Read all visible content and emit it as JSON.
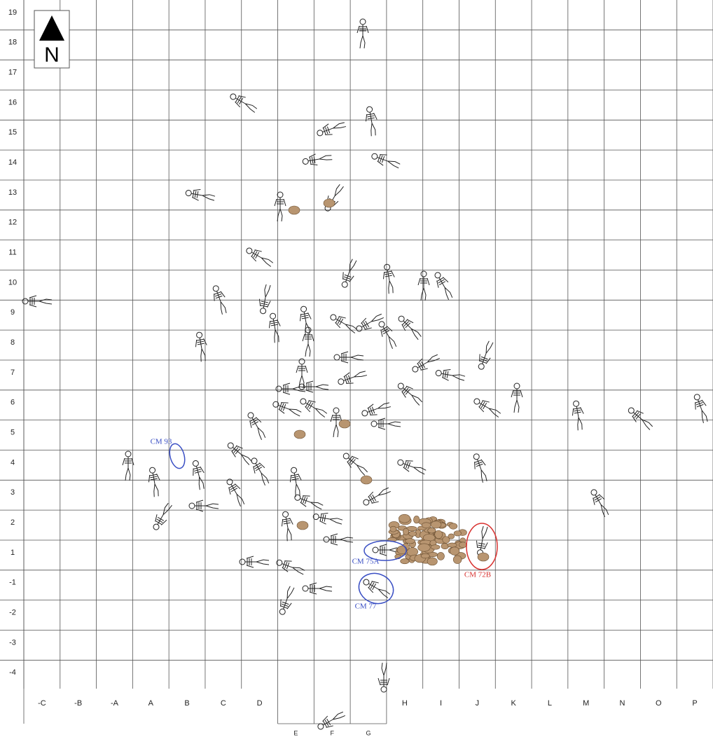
{
  "north": "N",
  "row_labels": [
    "19",
    "18",
    "17",
    "16",
    "15",
    "14",
    "13",
    "12",
    "11",
    "10",
    "9",
    "8",
    "7",
    "6",
    "5",
    "4",
    "3",
    "2",
    "1",
    "-1",
    "-2",
    "-3",
    "-4"
  ],
  "column_labels": [
    "-C",
    "-B",
    "-A",
    "A",
    "B",
    "C",
    "D",
    "",
    "",
    "",
    "H",
    "I",
    "J",
    "K",
    "L",
    "M",
    "N",
    "O",
    "P"
  ],
  "extension_labels": [
    "E",
    "F",
    "G"
  ],
  "annotations": [
    {
      "label": "CM 93",
      "color": "#3a4fc4"
    },
    {
      "label": "CM 75A",
      "color": "#3a4fc4"
    },
    {
      "label": "CM 77",
      "color": "#3a4fc4"
    },
    {
      "label": "CM 72B",
      "color": "#d8312f"
    }
  ]
}
